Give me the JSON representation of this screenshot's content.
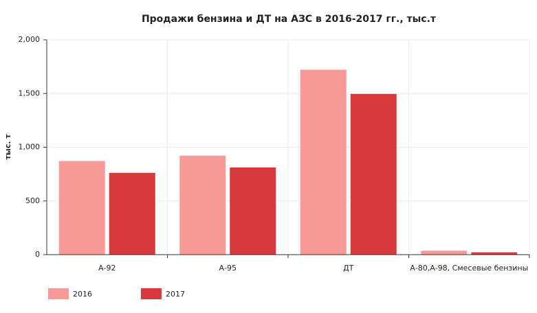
{
  "chart_data": {
    "type": "bar",
    "title": "Продажи бензина и ДТ на АЗС в 2016-2017 гг., тыс.т",
    "y_label": "тыс. т",
    "categories": [
      "А-92",
      "А-95",
      "ДТ",
      "А-80,А-98, Смесевые бензины"
    ],
    "series": [
      {
        "name": "2016",
        "color": "#f89a9a",
        "values": [
          875,
          925,
          1725,
          40
        ]
      },
      {
        "name": "2017",
        "color": "#d63a3d",
        "values": [
          765,
          815,
          1500,
          25
        ]
      }
    ],
    "ylim": [
      0,
      2000
    ],
    "yticks": [
      0,
      500,
      {
        "value": 1000,
        "label": "1,000"
      },
      {
        "value": 1500,
        "label": "1,500"
      },
      {
        "value": 2000,
        "label": "2,000"
      }
    ],
    "grid": true,
    "legend": "bottom"
  }
}
